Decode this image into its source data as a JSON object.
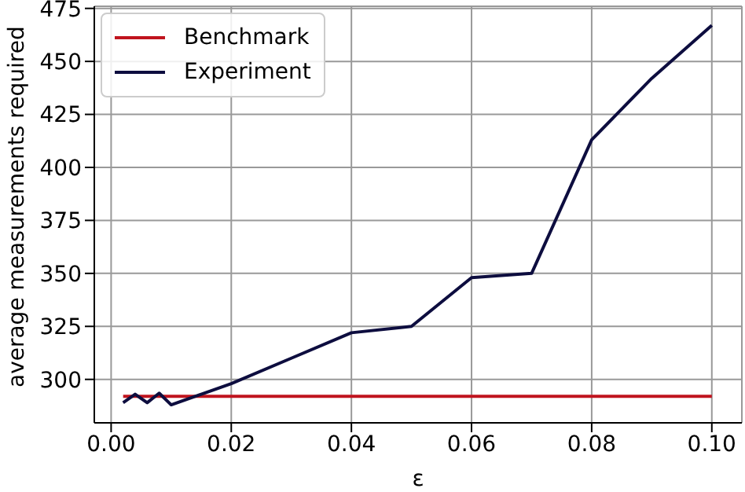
{
  "chart_data": {
    "type": "line",
    "xlabel": "ε",
    "ylabel": "average measurements required",
    "x": [
      0.002,
      0.004,
      0.006,
      0.008,
      0.01,
      0.02,
      0.03,
      0.04,
      0.05,
      0.06,
      0.07,
      0.08,
      0.09,
      0.1
    ],
    "series": [
      {
        "name": "Benchmark",
        "color": "#c0141e",
        "values": [
          292,
          292,
          292,
          292,
          292,
          292,
          292,
          292,
          292,
          292,
          292,
          292,
          292,
          292
        ]
      },
      {
        "name": "Experiment",
        "color": "#0d0d3f",
        "values": [
          289,
          293,
          289,
          293.5,
          288,
          298,
          310,
          322,
          325,
          348,
          350,
          413,
          442,
          467
        ]
      }
    ],
    "xlim": [
      -0.0028,
      0.105
    ],
    "xticks": [
      {
        "value": 0,
        "label": "0.00"
      },
      0.02,
      0.04,
      0.06,
      0.08,
      {
        "value": 0.1,
        "label": "0.10"
      }
    ],
    "ylim": [
      279.5,
      476
    ],
    "yticks": [
      300,
      325,
      350,
      375,
      400,
      425,
      450,
      475
    ],
    "grid": true,
    "legend": "top left",
    "marker": "none",
    "line_style": "solid"
  }
}
